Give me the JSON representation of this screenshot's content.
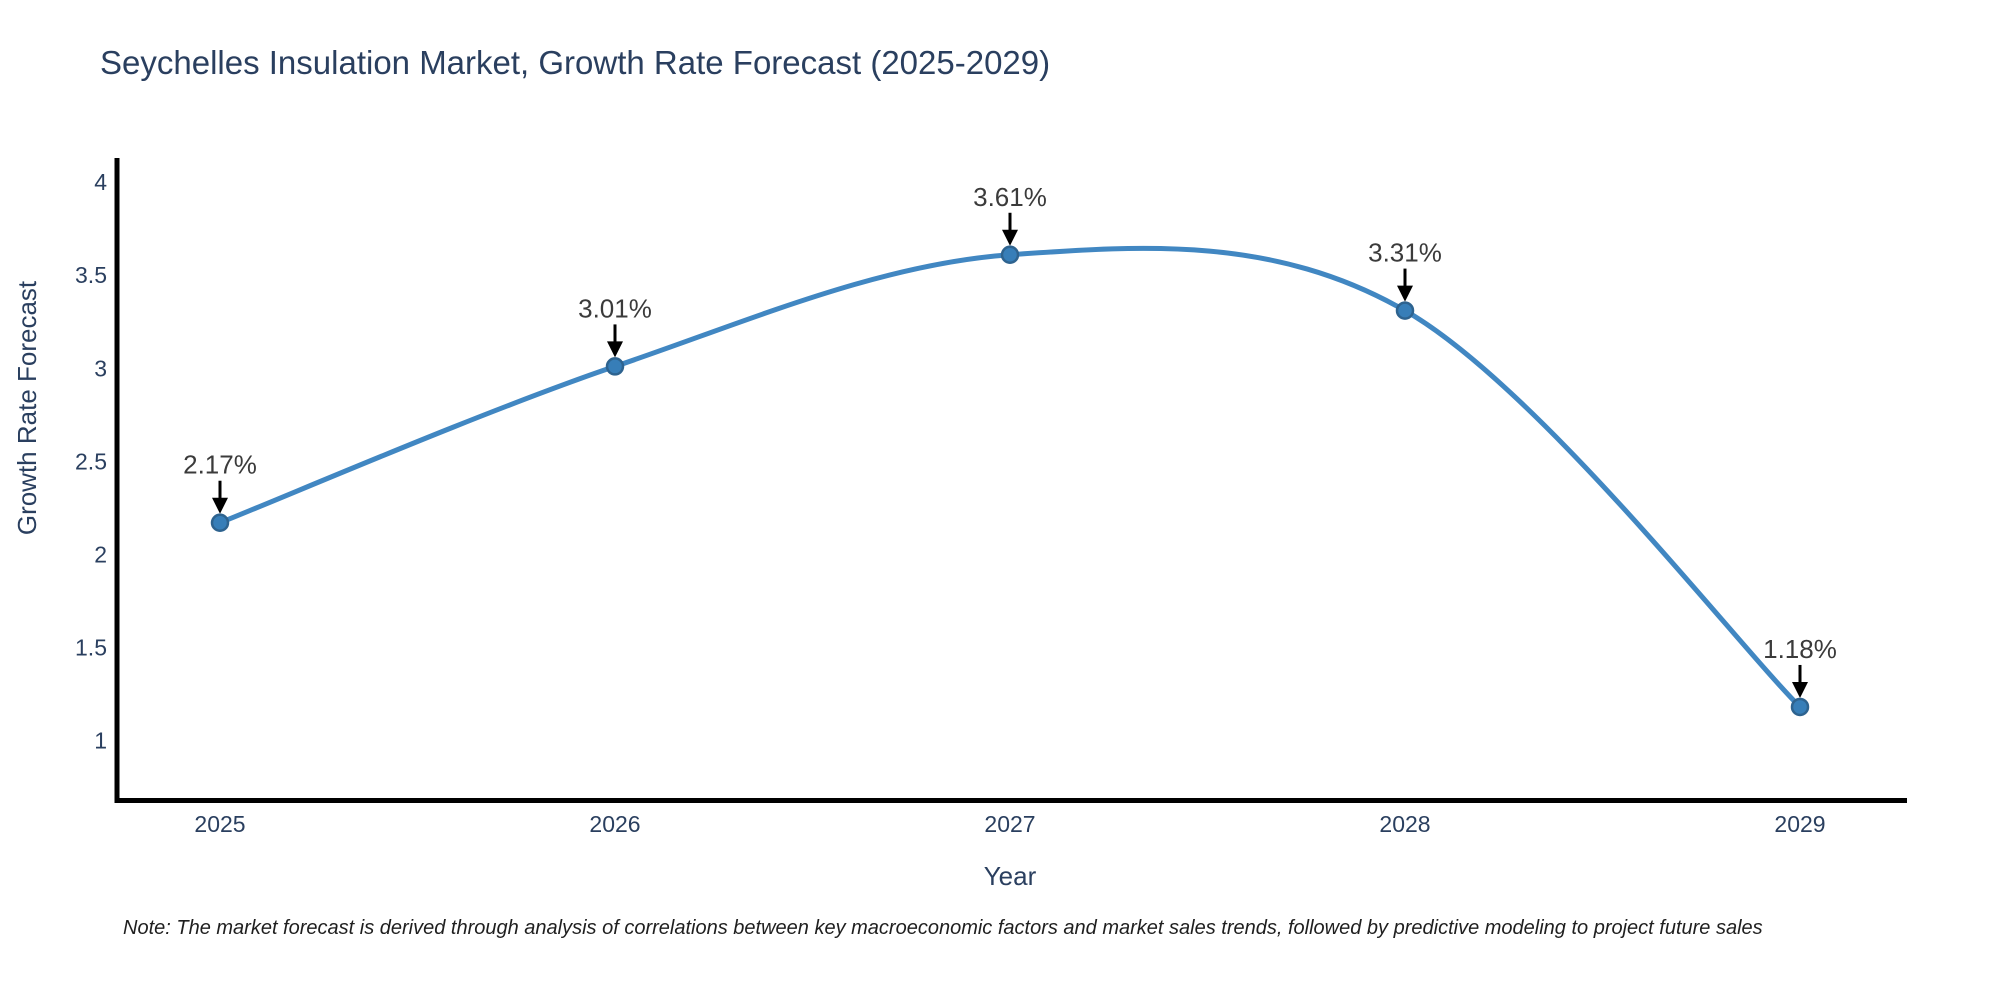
{
  "chart_data": {
    "type": "line",
    "line_shape": "spline",
    "title": "Seychelles Insulation Market, Growth Rate Forecast (2025-2029)",
    "xlabel": "Year",
    "ylabel": "Growth Rate Forecast",
    "categories": [
      "2025",
      "2026",
      "2027",
      "2028",
      "2029"
    ],
    "series": [
      {
        "name": "Growth Rate Forecast",
        "values": [
          2.17,
          3.01,
          3.61,
          3.31,
          1.18
        ]
      }
    ],
    "point_labels": [
      "2.17%",
      "3.01%",
      "3.61%",
      "3.31%",
      "1.18%"
    ],
    "y_ticks": [
      1,
      1.5,
      2,
      2.5,
      3,
      3.5,
      4
    ],
    "ylim": [
      0.68,
      4.13
    ],
    "grid": false,
    "legend": false,
    "colors": {
      "line": "#4187c2",
      "marker_fill": "#377eb8",
      "marker_edge": "#2e638f",
      "axis_line": "#000000",
      "axis_text": "#2a3f5f",
      "annotation_text": "#3b3b3b",
      "arrow": "#000000",
      "note_text": "#1f1f1f",
      "title_text": "#2a3f5f",
      "background": "#ffffff"
    }
  },
  "note": "Note: The market forecast is derived through analysis of correlations between key macroeconomic factors and market sales trends, followed by predictive modeling to project future sales"
}
